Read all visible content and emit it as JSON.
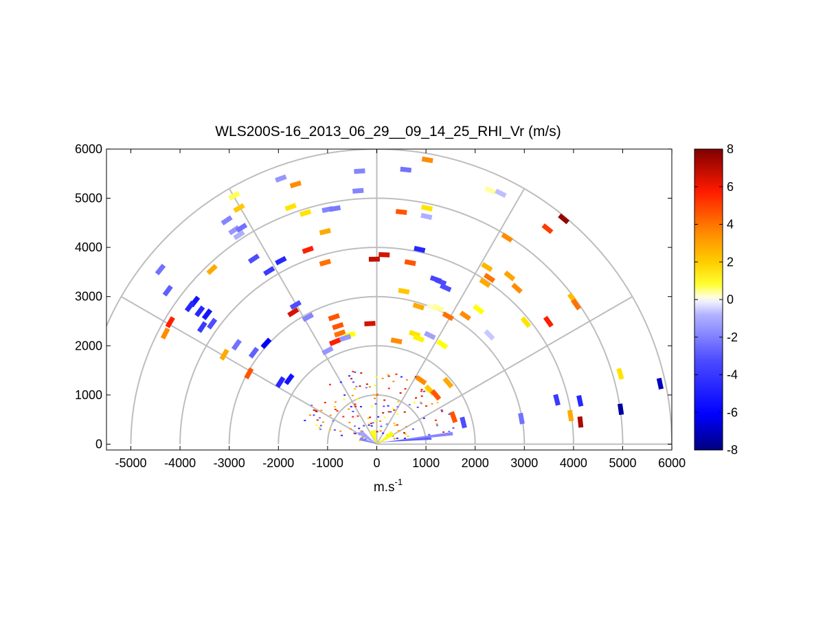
{
  "chart_data": {
    "type": "scatter",
    "subtype": "polar-rhi-velocity",
    "title": "WLS200S-16_2013_06_29__09_14_25_RHI_Vr (m/s)",
    "xlabel_base": "m.s",
    "xlabel_sup": "-1",
    "ylabel": "",
    "xlim": [
      -5500,
      6000
    ],
    "ylim": [
      -100,
      6000
    ],
    "x_ticks": [
      -5000,
      -4000,
      -3000,
      -2000,
      -1000,
      0,
      1000,
      2000,
      3000,
      4000,
      5000,
      6000
    ],
    "y_ticks": [
      0,
      1000,
      2000,
      3000,
      4000,
      5000,
      6000
    ],
    "range_rings": [
      1000,
      2000,
      3000,
      4000,
      5000,
      6000
    ],
    "radial_lines_deg": [
      0,
      30,
      60,
      90,
      120,
      150
    ],
    "colorbar": {
      "min": -8,
      "max": 8,
      "ticks": [
        8,
        6,
        4,
        2,
        0,
        -2,
        -4,
        -6,
        -8
      ]
    },
    "points": [
      {
        "x": -4400,
        "y": 3550,
        "v": -3
      },
      {
        "x": -4250,
        "y": 3120,
        "v": -3.5
      },
      {
        "x": -3700,
        "y": 2900,
        "v": -5.5
      },
      {
        "x": -3600,
        "y": 2700,
        "v": -5
      },
      {
        "x": -3450,
        "y": 2640,
        "v": -5.5
      },
      {
        "x": -3550,
        "y": 2380,
        "v": -4.5
      },
      {
        "x": -3350,
        "y": 2450,
        "v": -4
      },
      {
        "x": -4200,
        "y": 2480,
        "v": 5
      },
      {
        "x": -4300,
        "y": 2250,
        "v": 3
      },
      {
        "x": -3800,
        "y": 2800,
        "v": -5
      },
      {
        "x": -3350,
        "y": 3550,
        "v": 2.5
      },
      {
        "x": -2850,
        "y": 2020,
        "v": -3
      },
      {
        "x": -2500,
        "y": 1860,
        "v": -3.5
      },
      {
        "x": -2250,
        "y": 2050,
        "v": -6
      },
      {
        "x": -3100,
        "y": 1820,
        "v": 2.5
      },
      {
        "x": -2600,
        "y": 1440,
        "v": 4
      },
      {
        "x": -1960,
        "y": 1260,
        "v": -5
      },
      {
        "x": -1780,
        "y": 1320,
        "v": -5.5
      },
      {
        "x": -3050,
        "y": 4550,
        "v": -2.5
      },
      {
        "x": -2900,
        "y": 4350,
        "v": -2
      },
      {
        "x": -2750,
        "y": 4400,
        "v": -3
      },
      {
        "x": -2800,
        "y": 4250,
        "v": -1.5
      },
      {
        "x": -2800,
        "y": 4800,
        "v": 2
      },
      {
        "x": -2900,
        "y": 5050,
        "v": 0.8
      },
      {
        "x": -2500,
        "y": 3770,
        "v": -4
      },
      {
        "x": -2190,
        "y": 3520,
        "v": -4.5
      },
      {
        "x": -1950,
        "y": 3730,
        "v": -5
      },
      {
        "x": -1950,
        "y": 5400,
        "v": -2
      },
      {
        "x": -1650,
        "y": 5280,
        "v": 3
      },
      {
        "x": -1750,
        "y": 4820,
        "v": 1.5
      },
      {
        "x": -1450,
        "y": 4700,
        "v": 1.5
      },
      {
        "x": -1000,
        "y": 4770,
        "v": -2.5
      },
      {
        "x": -850,
        "y": 4790,
        "v": -2.8
      },
      {
        "x": -1050,
        "y": 4320,
        "v": 2.5
      },
      {
        "x": -1400,
        "y": 3950,
        "v": 5
      },
      {
        "x": -1050,
        "y": 3690,
        "v": 3.5
      },
      {
        "x": -350,
        "y": 5550,
        "v": -2.5
      },
      {
        "x": -380,
        "y": 5150,
        "v": -2.5
      },
      {
        "x": -1650,
        "y": 2830,
        "v": -4
      },
      {
        "x": -1700,
        "y": 2680,
        "v": 6
      },
      {
        "x": -1400,
        "y": 2580,
        "v": -2.5
      },
      {
        "x": -870,
        "y": 2580,
        "v": 4
      },
      {
        "x": -790,
        "y": 2400,
        "v": 4
      },
      {
        "x": -750,
        "y": 2250,
        "v": 3.5
      },
      {
        "x": -550,
        "y": 2220,
        "v": 1
      },
      {
        "x": -850,
        "y": 2080,
        "v": 5
      },
      {
        "x": -1000,
        "y": 1900,
        "v": -2
      },
      {
        "x": -640,
        "y": 2160,
        "v": -2
      },
      {
        "x": -140,
        "y": 2450,
        "v": 6
      },
      {
        "x": -50,
        "y": 3760,
        "v": 6.5
      },
      {
        "x": 150,
        "y": 3850,
        "v": 6
      },
      {
        "x": 590,
        "y": 5580,
        "v": -3
      },
      {
        "x": 1030,
        "y": 5780,
        "v": 3
      },
      {
        "x": 500,
        "y": 4720,
        "v": 4
      },
      {
        "x": 1020,
        "y": 4800,
        "v": 1.5
      },
      {
        "x": 1010,
        "y": 4630,
        "v": -1.5
      },
      {
        "x": 870,
        "y": 3960,
        "v": -5
      },
      {
        "x": 680,
        "y": 3690,
        "v": 4
      },
      {
        "x": 550,
        "y": 3110,
        "v": 2
      },
      {
        "x": 1300,
        "y": 3300,
        "v": -4
      },
      {
        "x": 1200,
        "y": 3350,
        "v": -4.2
      },
      {
        "x": 1400,
        "y": 3180,
        "v": -4
      },
      {
        "x": 1130,
        "y": 2780,
        "v": 0.5
      },
      {
        "x": 1250,
        "y": 2770,
        "v": 0.6
      },
      {
        "x": 850,
        "y": 2800,
        "v": 2.5
      },
      {
        "x": 1450,
        "y": 2600,
        "v": 3.5
      },
      {
        "x": 770,
        "y": 2240,
        "v": 1.5
      },
      {
        "x": 850,
        "y": 2150,
        "v": 1.2
      },
      {
        "x": 1080,
        "y": 2210,
        "v": -1.8
      },
      {
        "x": 1330,
        "y": 2030,
        "v": 1
      },
      {
        "x": 400,
        "y": 2100,
        "v": 3
      },
      {
        "x": 2310,
        "y": 5160,
        "v": 0.6
      },
      {
        "x": 2520,
        "y": 5100,
        "v": -1.2
      },
      {
        "x": 2650,
        "y": 4200,
        "v": 3
      },
      {
        "x": 3470,
        "y": 4380,
        "v": 4.5
      },
      {
        "x": 3800,
        "y": 4580,
        "v": 7.5
      },
      {
        "x": 2240,
        "y": 3600,
        "v": 2.3
      },
      {
        "x": 2290,
        "y": 3380,
        "v": 3.5
      },
      {
        "x": 2200,
        "y": 3280,
        "v": 2.5
      },
      {
        "x": 2700,
        "y": 3420,
        "v": 2.6
      },
      {
        "x": 2850,
        "y": 3170,
        "v": 3
      },
      {
        "x": 2070,
        "y": 2740,
        "v": 1
      },
      {
        "x": 1800,
        "y": 2610,
        "v": 3
      },
      {
        "x": 3030,
        "y": 2480,
        "v": 1.5
      },
      {
        "x": 3490,
        "y": 2490,
        "v": 5
      },
      {
        "x": 3980,
        "y": 2960,
        "v": 2.2
      },
      {
        "x": 4050,
        "y": 2840,
        "v": 3.5
      },
      {
        "x": 2290,
        "y": 2220,
        "v": -1
      },
      {
        "x": 4950,
        "y": 1430,
        "v": 1.5
      },
      {
        "x": 5760,
        "y": 1230,
        "v": -7
      },
      {
        "x": 3660,
        "y": 900,
        "v": -4.5
      },
      {
        "x": 4130,
        "y": 880,
        "v": -5
      },
      {
        "x": 4960,
        "y": 710,
        "v": -7.5
      },
      {
        "x": 3940,
        "y": 580,
        "v": 2.5
      },
      {
        "x": 4140,
        "y": 450,
        "v": 7
      },
      {
        "x": 2940,
        "y": 520,
        "v": -3
      },
      {
        "x": 1560,
        "y": 550,
        "v": 4
      },
      {
        "x": 1760,
        "y": 440,
        "v": -4
      },
      {
        "x": 1080,
        "y": 1100,
        "v": 2
      },
      {
        "x": 900,
        "y": 1300,
        "v": 3
      },
      {
        "x": 1450,
        "y": 1250,
        "v": 2.5
      },
      {
        "x": 1200,
        "y": 1000,
        "v": 4
      }
    ]
  }
}
